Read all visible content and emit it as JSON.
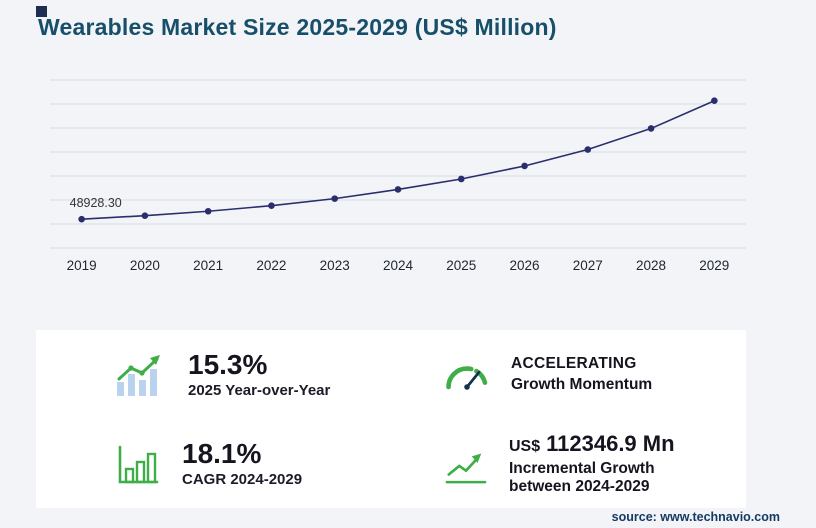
{
  "page": {
    "title": "Wearables Market Size 2025-2029 (US$ Million)",
    "source": "source: www.technavio.com"
  },
  "colors": {
    "line": "#2b2e6d",
    "green": "#3fae49",
    "grid": "#d8dce2",
    "title_navy": "#174f6b"
  },
  "chart_data": {
    "type": "line",
    "title": "Wearables Market Size 2025-2029 (US$ Million)",
    "xlabel": "",
    "ylabel": "US$ Million",
    "x": [
      "2019",
      "2020",
      "2021",
      "2022",
      "2023",
      "2024",
      "2025",
      "2026",
      "2027",
      "2028",
      "2029"
    ],
    "series": [
      {
        "name": "Wearables Market Size (US$ Million)",
        "values": [
          48928.3,
          53330,
          58930,
          66000,
          74910,
          86554.3,
          99797.1,
          116263.6,
          137074.8,
          163804.4,
          198901.2
        ]
      }
    ],
    "point_label": "48928.30",
    "point_label_index": 0,
    "ylim": [
      20000,
      215000
    ],
    "grid": true,
    "legend": false,
    "marker": "circle"
  },
  "stats": {
    "yoy": {
      "value": "15.3%",
      "label": "2025 Year-over-Year"
    },
    "momentum": {
      "line1": "ACCELERATING",
      "line2": "Growth Momentum"
    },
    "cagr": {
      "value": "18.1%",
      "label": "CAGR 2024-2029"
    },
    "incremental": {
      "currency": "US$",
      "value": "112346.9 Mn",
      "line1": "Incremental Growth",
      "line2": "between 2024-2029"
    }
  }
}
